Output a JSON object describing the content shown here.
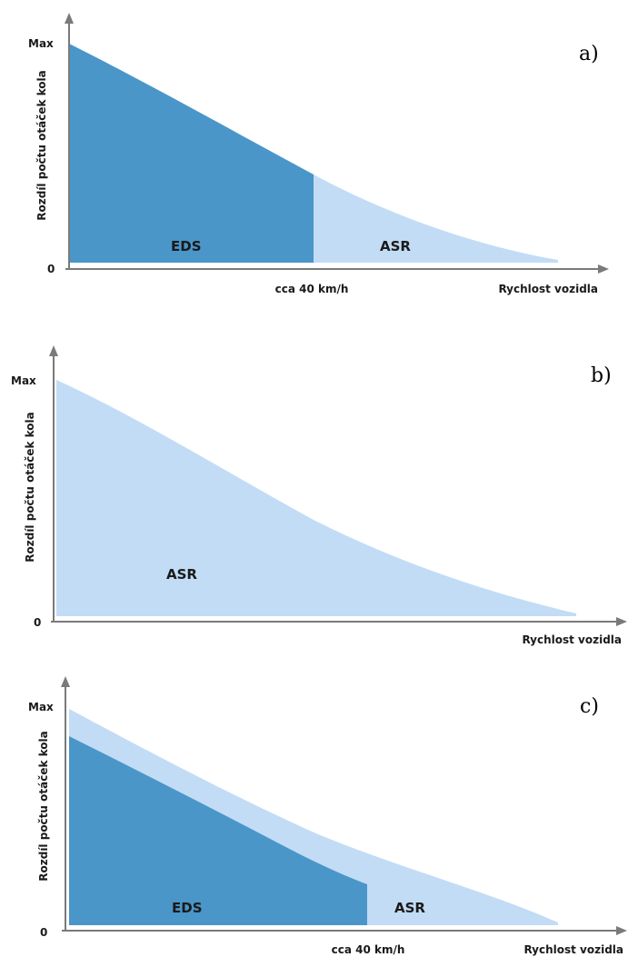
{
  "panels": [
    {
      "letter": "a)",
      "y_axis_label": "Rozdíl počtu otáček kola",
      "y_max_label": "Max",
      "y_zero_label": "0",
      "x_axis_label": "Rychlost vozidla",
      "x_marker_label": "cca 40 km/h",
      "region_labels": {
        "eds": "EDS",
        "asr": "ASR"
      }
    },
    {
      "letter": "b)",
      "y_axis_label": "Rozdíl počtu otáček kola",
      "y_max_label": "Max",
      "y_zero_label": "0",
      "x_axis_label": "Rychlost vozidla",
      "region_labels": {
        "asr": "ASR"
      }
    },
    {
      "letter": "c)",
      "y_axis_label": "Rozdíl počtu otáček kola",
      "y_max_label": "Max",
      "y_zero_label": "0",
      "x_axis_label": "Rychlost vozidla",
      "x_marker_label": "cca 40 km/h",
      "region_labels": {
        "eds": "EDS",
        "asr": "ASR"
      }
    }
  ],
  "colors": {
    "eds": "#4a96c9",
    "asr": "#c2dcf6",
    "axis": "#7a7a7a",
    "text": "#1a1a1a"
  }
}
